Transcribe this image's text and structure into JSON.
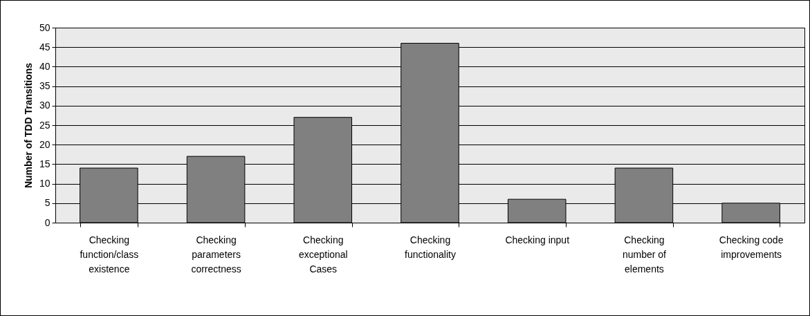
{
  "chart_data": {
    "type": "bar",
    "ylabel": "Number of TDD Transitions",
    "categories": [
      "Checking function/class existence",
      "Checking parameters correctness",
      "Checking exceptional Cases",
      "Checking functionality",
      "Checking input",
      "Checking number of elements",
      "Checking code improvements"
    ],
    "values": [
      14,
      17,
      27,
      46,
      6,
      14,
      5
    ],
    "color": "#808080",
    "ylim": [
      0,
      50
    ],
    "yticks": [
      0,
      5,
      10,
      15,
      20,
      25,
      30,
      35,
      40,
      45,
      50
    ],
    "grid": "y"
  }
}
